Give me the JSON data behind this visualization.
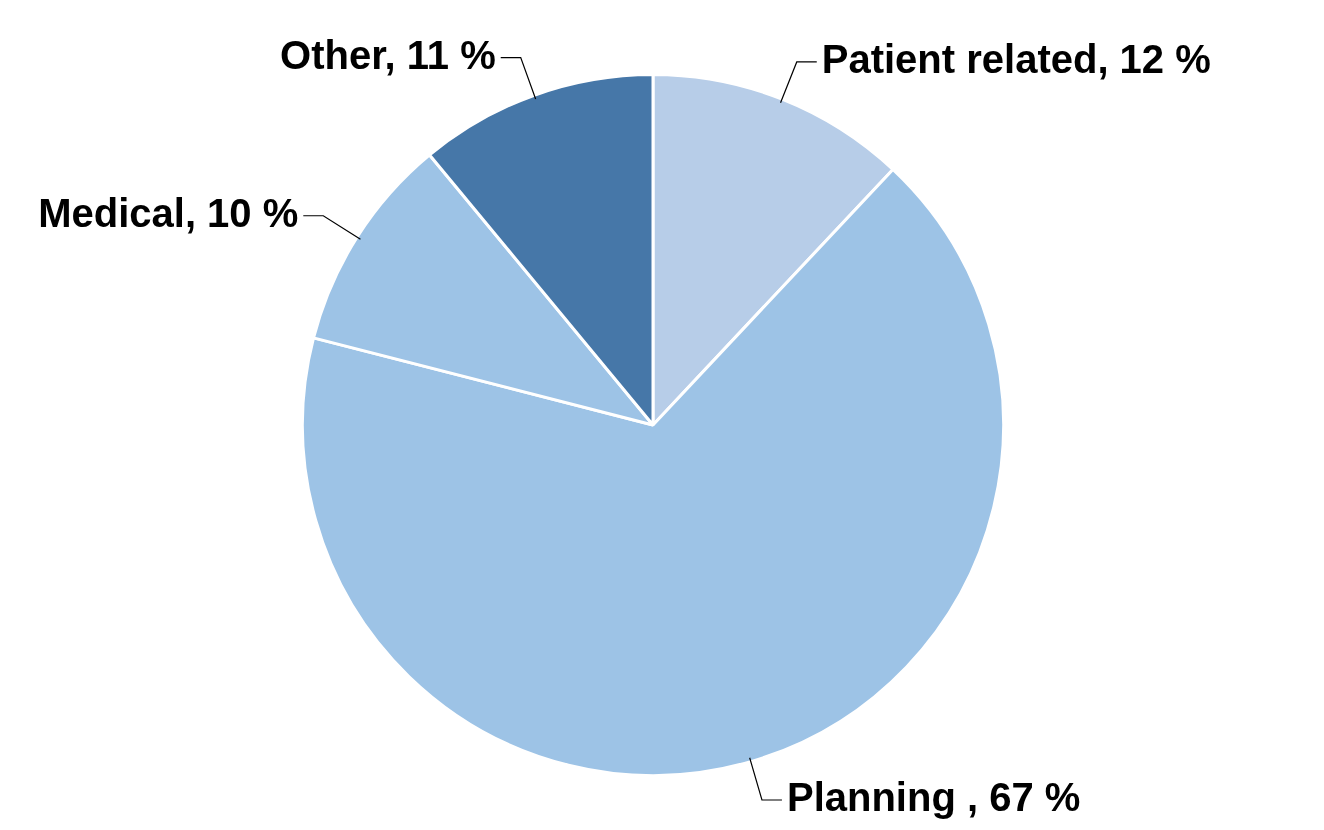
{
  "chart_data": {
    "type": "pie",
    "categories": [
      "Patient related",
      "Planning ",
      "Medical",
      "Other"
    ],
    "values": [
      12,
      67,
      10,
      11
    ],
    "colors": [
      "#b7cde8",
      "#9dc3e6",
      "#9dc3e6",
      "#4677a8"
    ],
    "value_labels": [
      "12 %",
      "67 %",
      "10 %",
      "11 %"
    ]
  }
}
